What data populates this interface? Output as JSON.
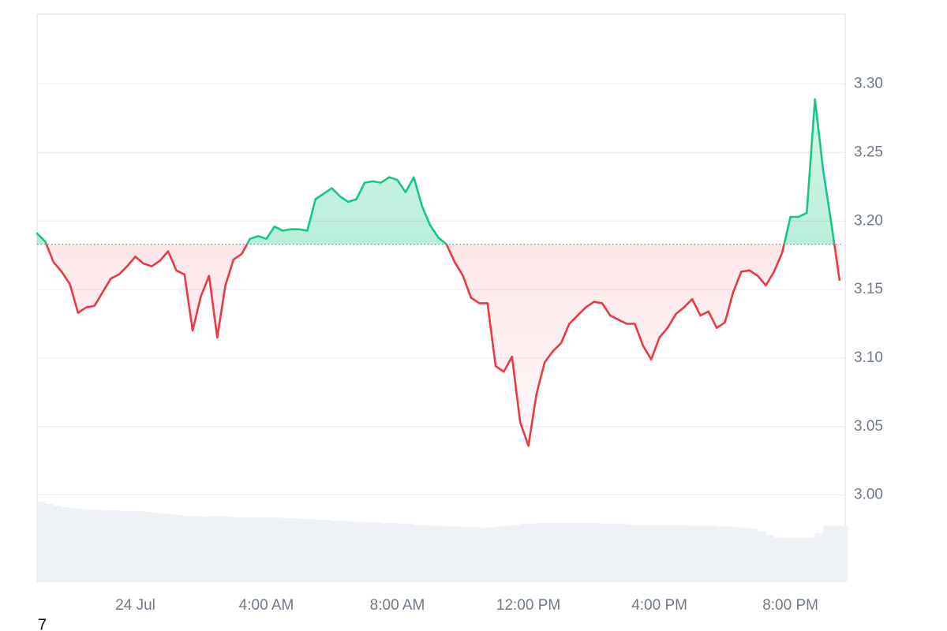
{
  "chart_data": {
    "type": "line",
    "x": [
      -3,
      -2.75,
      -2.5,
      -2.25,
      -2,
      -1.75,
      -1.5,
      -1.25,
      -1,
      -0.75,
      -0.5,
      -0.25,
      0,
      0.25,
      0.5,
      0.75,
      1,
      1.25,
      1.5,
      1.75,
      2,
      2.25,
      2.5,
      2.75,
      3,
      3.25,
      3.5,
      3.75,
      4,
      4.25,
      4.5,
      4.75,
      5,
      5.25,
      5.5,
      5.75,
      6,
      6.25,
      6.5,
      6.75,
      7,
      7.25,
      7.5,
      7.75,
      8,
      8.25,
      8.5,
      8.75,
      9,
      9.25,
      9.5,
      9.75,
      10,
      10.25,
      10.5,
      10.75,
      11,
      11.25,
      11.5,
      11.75,
      12,
      12.25,
      12.5,
      12.75,
      13,
      13.25,
      13.5,
      13.75,
      14,
      14.25,
      14.5,
      14.75,
      15,
      15.25,
      15.5,
      15.75,
      16,
      16.25,
      16.5,
      16.75,
      17,
      17.25,
      17.5,
      17.75,
      18,
      18.25,
      18.5,
      18.75,
      19,
      19.25,
      19.5,
      19.75,
      20,
      20.25,
      20.5,
      20.75,
      21,
      21.25,
      21.5
    ],
    "values": [
      3.191,
      3.185,
      3.17,
      3.163,
      3.154,
      3.133,
      3.137,
      3.138,
      3.148,
      3.158,
      3.161,
      3.167,
      3.174,
      3.169,
      3.167,
      3.171,
      3.178,
      3.164,
      3.161,
      3.12,
      3.145,
      3.16,
      3.115,
      3.153,
      3.172,
      3.176,
      3.187,
      3.189,
      3.187,
      3.196,
      3.193,
      3.194,
      3.194,
      3.193,
      3.216,
      3.22,
      3.224,
      3.218,
      3.214,
      3.216,
      3.228,
      3.229,
      3.228,
      3.232,
      3.23,
      3.221,
      3.232,
      3.211,
      3.197,
      3.188,
      3.183,
      3.17,
      3.16,
      3.144,
      3.14,
      3.14,
      3.094,
      3.09,
      3.101,
      3.053,
      3.036,
      3.074,
      3.097,
      3.105,
      3.111,
      3.125,
      3.131,
      3.137,
      3.141,
      3.14,
      3.131,
      3.128,
      3.125,
      3.125,
      3.109,
      3.099,
      3.115,
      3.122,
      3.132,
      3.137,
      3.143,
      3.131,
      3.134,
      3.122,
      3.126,
      3.148,
      3.163,
      3.164,
      3.16,
      3.153,
      3.163,
      3.177,
      3.203,
      3.203,
      3.206,
      3.289,
      3.237,
      3.198,
      3.157
    ],
    "volume": [
      100,
      97,
      95,
      93,
      92,
      91,
      90,
      90,
      89,
      89,
      88,
      88,
      88,
      87,
      86,
      85,
      84,
      83,
      82,
      82,
      81,
      82,
      82,
      81,
      80,
      80,
      80,
      80,
      80,
      80,
      79,
      79,
      78,
      78,
      77,
      77,
      76,
      76,
      75,
      75,
      74,
      74,
      73,
      73,
      72,
      72,
      71,
      71,
      70,
      70,
      69,
      69,
      68,
      68,
      67,
      68,
      69,
      70,
      71,
      72,
      72,
      73,
      73,
      73,
      73,
      73,
      73,
      73,
      73,
      72,
      72,
      72,
      71,
      71,
      71,
      71,
      71,
      71,
      71,
      70,
      70,
      70,
      70,
      69,
      69,
      68,
      67,
      66,
      63,
      58,
      55,
      55,
      55,
      55,
      55,
      60,
      70,
      70,
      70
    ],
    "baseline": 3.183,
    "up_color": "#16c784",
    "down_color": "#ea3943",
    "volume_color": "#eef1f5",
    "grid": true,
    "xlim": [
      -3,
      21.6
    ],
    "xticks": [
      {
        "value": 0,
        "label": "24 Jul"
      },
      {
        "value": 4,
        "label": "4:00 AM"
      },
      {
        "value": 8,
        "label": "8:00 AM"
      },
      {
        "value": 12,
        "label": "12:00 PM"
      },
      {
        "value": 16,
        "label": "4:00 PM"
      },
      {
        "value": 20,
        "label": "8:00 PM"
      }
    ],
    "ylim": [
      2.937,
      3.351
    ],
    "yticks": [
      {
        "value": 3.0,
        "label": "3.00"
      },
      3.05,
      {
        "value": 3.1,
        "label": "3.10"
      },
      3.15,
      {
        "value": 3.2,
        "label": "3.20"
      },
      3.25,
      {
        "value": 3.3,
        "label": "3.30"
      }
    ]
  },
  "footer_note": "7"
}
